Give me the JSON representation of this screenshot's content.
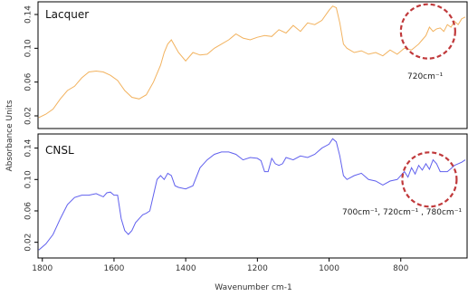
{
  "chart_data": {
    "type": "line",
    "xlabel": "Wavenumber cm-1",
    "ylabel": "Absorbance Units",
    "x_ticks": [
      1800,
      1600,
      1400,
      1200,
      1000,
      800
    ],
    "xlim": [
      1812,
      615
    ],
    "x_reversed": true,
    "panels": [
      {
        "label": "Lacquer",
        "color": "#f2b25e",
        "ylim": [
          0.005,
          0.155
        ],
        "y_ticks": [
          0.02,
          0.06,
          0.1,
          0.14
        ],
        "y_tick_labels": [
          "0.02",
          "0.06",
          "0.10",
          "0.14"
        ],
        "annotation": "720cm⁻¹",
        "circle_center": [
          724,
          0.12
        ],
        "series": [
          {
            "x": [
              1810,
              1790,
              1770,
              1750,
              1730,
              1710,
              1690,
              1670,
              1650,
              1630,
              1610,
              1590,
              1570,
              1550,
              1530,
              1510,
              1490,
              1470,
              1460,
              1450,
              1440,
              1420,
              1400,
              1380,
              1360,
              1340,
              1320,
              1300,
              1280,
              1260,
              1240,
              1220,
              1200,
              1180,
              1160,
              1140,
              1120,
              1100,
              1080,
              1060,
              1040,
              1020,
              1000,
              990,
              980,
              970,
              960,
              950,
              930,
              910,
              890,
              870,
              850,
              830,
              810,
              790,
              770,
              750,
              740,
              730,
              720,
              710,
              700,
              690,
              680,
              670,
              660,
              650,
              640,
              630,
              620
            ],
            "values": [
              0.018,
              0.022,
              0.028,
              0.04,
              0.05,
              0.055,
              0.065,
              0.072,
              0.073,
              0.072,
              0.068,
              0.062,
              0.05,
              0.042,
              0.04,
              0.045,
              0.06,
              0.08,
              0.095,
              0.105,
              0.11,
              0.095,
              0.085,
              0.095,
              0.092,
              0.093,
              0.1,
              0.105,
              0.11,
              0.117,
              0.112,
              0.11,
              0.113,
              0.115,
              0.114,
              0.122,
              0.118,
              0.127,
              0.12,
              0.13,
              0.128,
              0.133,
              0.145,
              0.15,
              0.148,
              0.13,
              0.105,
              0.1,
              0.095,
              0.097,
              0.093,
              0.095,
              0.091,
              0.098,
              0.093,
              0.1,
              0.098,
              0.105,
              0.11,
              0.115,
              0.125,
              0.12,
              0.123,
              0.124,
              0.12,
              0.128,
              0.125,
              0.132,
              0.128,
              0.135,
              0.137
            ]
          }
        ]
      },
      {
        "label": "CNSL",
        "color": "#6060ee",
        "ylim": [
          0.0,
          0.158
        ],
        "y_ticks": [
          0.02,
          0.06,
          0.1,
          0.14
        ],
        "y_tick_labels": [
          "0.02",
          "0.06",
          "0.10",
          "0.14"
        ],
        "annotation": "700cm⁻¹, 720cm⁻¹ , 780cm⁻¹",
        "circle_center": [
          720,
          0.1
        ],
        "series": [
          {
            "x": [
              1810,
              1790,
              1770,
              1750,
              1730,
              1710,
              1690,
              1670,
              1650,
              1630,
              1620,
              1610,
              1600,
              1590,
              1580,
              1570,
              1560,
              1550,
              1540,
              1530,
              1520,
              1510,
              1500,
              1490,
              1480,
              1470,
              1460,
              1450,
              1440,
              1430,
              1420,
              1400,
              1380,
              1360,
              1340,
              1320,
              1300,
              1280,
              1260,
              1240,
              1220,
              1200,
              1190,
              1180,
              1170,
              1160,
              1150,
              1140,
              1130,
              1120,
              1100,
              1080,
              1060,
              1040,
              1020,
              1000,
              990,
              980,
              970,
              960,
              950,
              930,
              910,
              890,
              870,
              850,
              830,
              810,
              790,
              780,
              770,
              760,
              750,
              740,
              730,
              720,
              710,
              700,
              690,
              680,
              670,
              660,
              650,
              640,
              630,
              620
            ],
            "values": [
              0.01,
              0.018,
              0.03,
              0.05,
              0.068,
              0.077,
              0.08,
              0.08,
              0.082,
              0.078,
              0.083,
              0.084,
              0.08,
              0.08,
              0.05,
              0.035,
              0.03,
              0.035,
              0.045,
              0.05,
              0.055,
              0.057,
              0.06,
              0.08,
              0.1,
              0.105,
              0.1,
              0.108,
              0.105,
              0.092,
              0.09,
              0.088,
              0.092,
              0.115,
              0.125,
              0.132,
              0.135,
              0.135,
              0.132,
              0.125,
              0.128,
              0.127,
              0.124,
              0.11,
              0.11,
              0.127,
              0.12,
              0.118,
              0.12,
              0.128,
              0.125,
              0.13,
              0.128,
              0.132,
              0.14,
              0.145,
              0.152,
              0.148,
              0.13,
              0.105,
              0.1,
              0.105,
              0.108,
              0.1,
              0.098,
              0.093,
              0.098,
              0.1,
              0.11,
              0.103,
              0.115,
              0.107,
              0.118,
              0.112,
              0.12,
              0.113,
              0.125,
              0.12,
              0.11,
              0.11,
              0.11,
              0.114,
              0.118,
              0.12,
              0.122,
              0.125
            ]
          }
        ]
      }
    ]
  }
}
